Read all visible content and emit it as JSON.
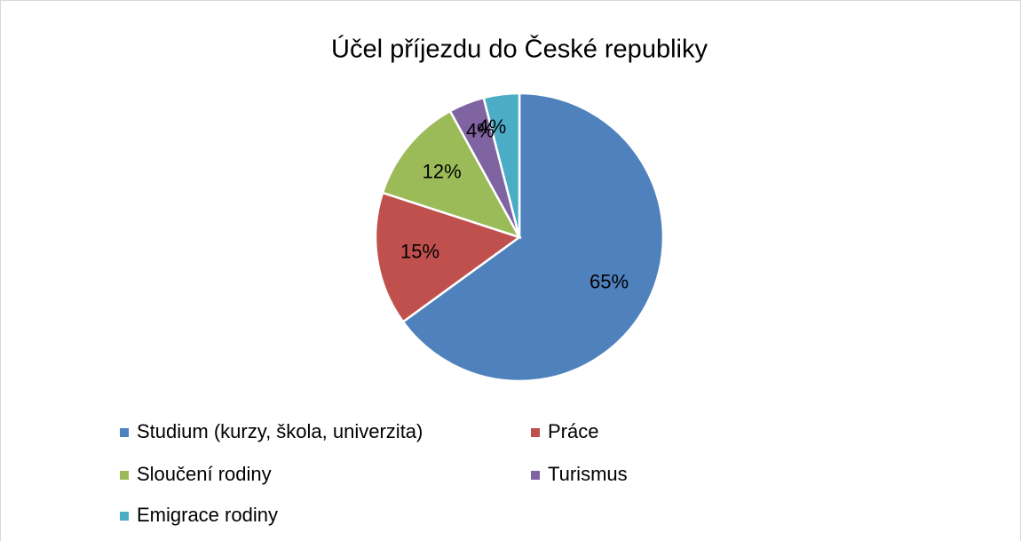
{
  "chart_data": {
    "type": "pie",
    "title": "Účel příjezdu do České republiky",
    "categories": [
      "Studium (kurzy, škola, univerzita)",
      "Práce",
      "Sloučení rodiny",
      "Turismus",
      "Emigrace rodiny"
    ],
    "values": [
      65,
      15,
      12,
      4,
      4
    ],
    "value_labels": [
      "65%",
      "15%",
      "12%",
      "4%",
      "4%"
    ],
    "colors": [
      "#4f81bd",
      "#c0504d",
      "#9bbb59",
      "#8064a2",
      "#4bacc6"
    ],
    "legend": "bottom"
  }
}
